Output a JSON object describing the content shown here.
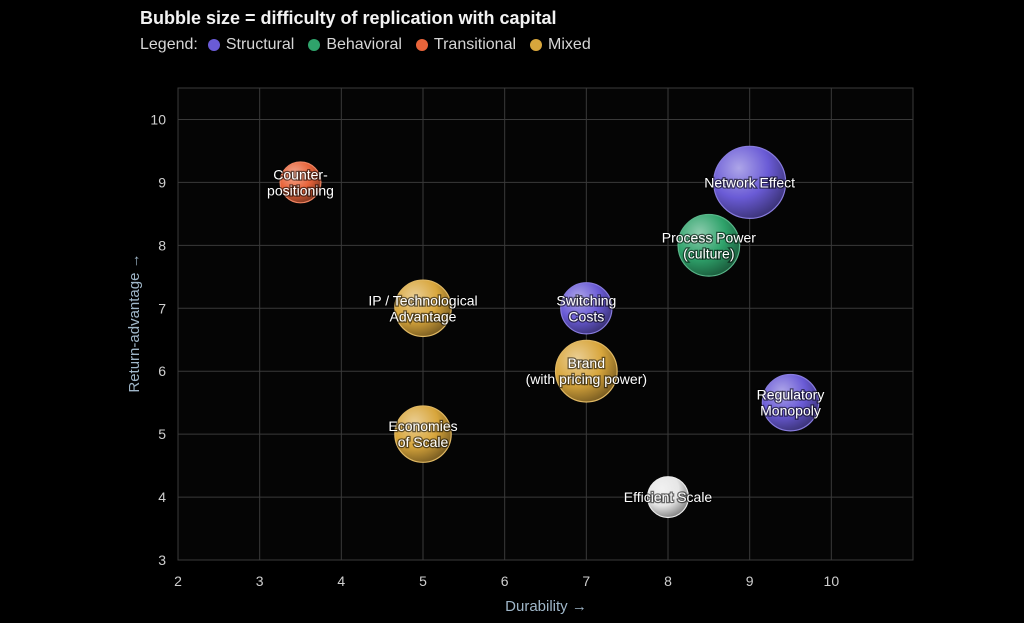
{
  "chart_data": {
    "type": "scatter",
    "title": "Bubble size = difficulty of replication with capital",
    "legend_label": "Legend:",
    "legend": [
      {
        "name": "Structural",
        "color": "#6a5bd6"
      },
      {
        "name": "Behavioral",
        "color": "#2fa36b"
      },
      {
        "name": "Transitional",
        "color": "#e8643a"
      },
      {
        "name": "Mixed",
        "color": "#d8a63c"
      }
    ],
    "xlabel": "Durability →",
    "ylabel": "Return-advantage →",
    "xlim": [
      2,
      11
    ],
    "ylim": [
      3,
      10.5
    ],
    "xticks": [
      "2",
      "3",
      "4",
      "5",
      "6",
      "7",
      "8",
      "9",
      "10"
    ],
    "yticks": [
      "3",
      "4",
      "5",
      "6",
      "7",
      "8",
      "9",
      "10"
    ],
    "grid": true,
    "points": [
      {
        "label": [
          "Counter-",
          "positioning"
        ],
        "x": 3.5,
        "y": 9,
        "size": 2,
        "category": "Transitional",
        "color": "#e8643a"
      },
      {
        "label": [
          "Network Effect"
        ],
        "x": 9,
        "y": 9,
        "size": 5,
        "category": "Structural",
        "color": "#6a5bd6"
      },
      {
        "label": [
          "Process Power",
          "(culture)"
        ],
        "x": 8.5,
        "y": 8,
        "size": 4,
        "category": "Behavioral",
        "color": "#2fa36b"
      },
      {
        "label": [
          "IP / Technological",
          "Advantage"
        ],
        "x": 5,
        "y": 7,
        "size": 3.5,
        "category": "Mixed",
        "color": "#d8a63c"
      },
      {
        "label": [
          "Switching",
          "Costs"
        ],
        "x": 7,
        "y": 7,
        "size": 3,
        "category": "Structural",
        "color": "#6a5bd6"
      },
      {
        "label": [
          "Brand",
          "(with pricing power)"
        ],
        "x": 7,
        "y": 6,
        "size": 4,
        "category": "Mixed",
        "color": "#d8a63c"
      },
      {
        "label": [
          "Regulatory",
          "Monopoly"
        ],
        "x": 9.5,
        "y": 5.5,
        "size": 3.5,
        "category": "Structural",
        "color": "#6a5bd6"
      },
      {
        "label": [
          "Economies",
          "of Scale"
        ],
        "x": 5,
        "y": 5,
        "size": 3.5,
        "category": "Mixed",
        "color": "#d8a63c"
      },
      {
        "label": [
          "Efficient Scale"
        ],
        "x": 8,
        "y": 4,
        "size": 2,
        "category": "Other",
        "color": "#e6e6e6"
      }
    ]
  }
}
